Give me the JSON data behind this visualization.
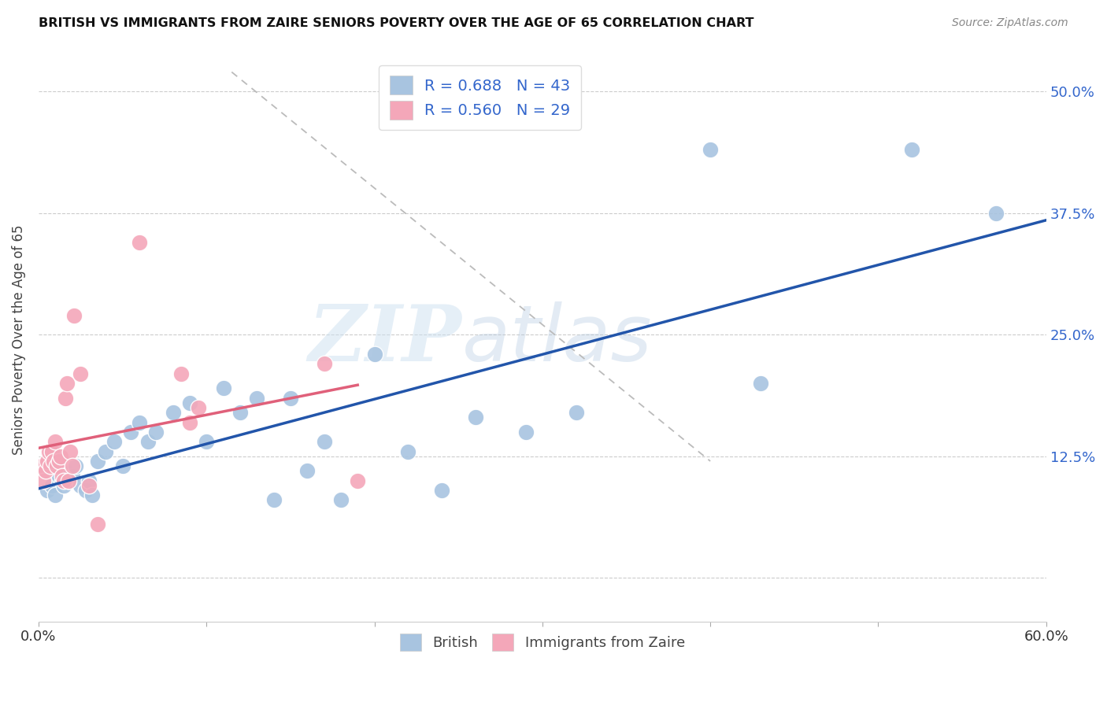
{
  "title": "BRITISH VS IMMIGRANTS FROM ZAIRE SENIORS POVERTY OVER THE AGE OF 65 CORRELATION CHART",
  "source": "Source: ZipAtlas.com",
  "ylabel": "Seniors Poverty Over the Age of 65",
  "ytick_labels": [
    "",
    "12.5%",
    "25.0%",
    "37.5%",
    "50.0%"
  ],
  "ytick_values": [
    0,
    0.125,
    0.25,
    0.375,
    0.5
  ],
  "xlim": [
    0.0,
    0.6
  ],
  "ylim": [
    -0.045,
    0.535
  ],
  "R_british": 0.688,
  "N_british": 43,
  "R_zaire": 0.56,
  "N_zaire": 29,
  "watermark_zip": "ZIP",
  "watermark_atlas": "atlas",
  "british_color": "#a8c4e0",
  "zaire_color": "#f4a7b9",
  "british_line_color": "#2255aa",
  "zaire_line_color": "#e0607a",
  "legend_text_color": "#3366cc",
  "british_x": [
    0.005,
    0.008,
    0.01,
    0.012,
    0.014,
    0.015,
    0.016,
    0.018,
    0.02,
    0.022,
    0.025,
    0.028,
    0.03,
    0.032,
    0.035,
    0.04,
    0.045,
    0.05,
    0.055,
    0.06,
    0.065,
    0.07,
    0.08,
    0.09,
    0.1,
    0.11,
    0.12,
    0.13,
    0.14,
    0.15,
    0.16,
    0.17,
    0.18,
    0.2,
    0.22,
    0.24,
    0.26,
    0.29,
    0.32,
    0.4,
    0.43,
    0.52,
    0.57
  ],
  "british_y": [
    0.09,
    0.095,
    0.085,
    0.105,
    0.1,
    0.095,
    0.11,
    0.1,
    0.105,
    0.115,
    0.095,
    0.09,
    0.1,
    0.085,
    0.12,
    0.13,
    0.14,
    0.115,
    0.15,
    0.16,
    0.14,
    0.15,
    0.17,
    0.18,
    0.14,
    0.195,
    0.17,
    0.185,
    0.08,
    0.185,
    0.11,
    0.14,
    0.08,
    0.23,
    0.13,
    0.09,
    0.165,
    0.15,
    0.17,
    0.44,
    0.2,
    0.44,
    0.375
  ],
  "zaire_x": [
    0.002,
    0.003,
    0.004,
    0.005,
    0.006,
    0.007,
    0.008,
    0.009,
    0.01,
    0.011,
    0.012,
    0.013,
    0.014,
    0.015,
    0.016,
    0.017,
    0.018,
    0.019,
    0.02,
    0.021,
    0.025,
    0.03,
    0.035,
    0.06,
    0.085,
    0.09,
    0.095,
    0.17,
    0.19
  ],
  "zaire_y": [
    0.115,
    0.1,
    0.11,
    0.12,
    0.13,
    0.115,
    0.13,
    0.12,
    0.14,
    0.115,
    0.12,
    0.125,
    0.105,
    0.1,
    0.185,
    0.2,
    0.1,
    0.13,
    0.115,
    0.27,
    0.21,
    0.095,
    0.055,
    0.345,
    0.21,
    0.16,
    0.175,
    0.22,
    0.1
  ],
  "dash_line_x": [
    0.115,
    0.4
  ],
  "dash_line_y": [
    0.52,
    0.12
  ]
}
